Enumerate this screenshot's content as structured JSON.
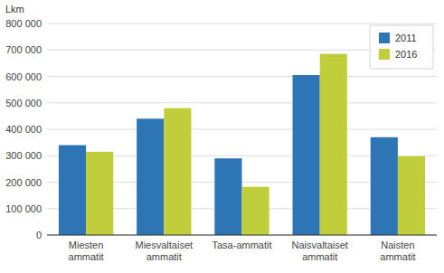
{
  "chart_data": {
    "type": "bar",
    "categories": [
      "Miesten\nammatit",
      "Miesvaltaiset\nammatit",
      "Tasa-ammatit",
      "Naisvaltaiset\nammatit",
      "Naisten\nammatit"
    ],
    "series": [
      {
        "name": "2011",
        "color": "#2E75B6",
        "values": [
          340000,
          440000,
          290000,
          605000,
          370000
        ]
      },
      {
        "name": "2016",
        "color": "#BFCE3A",
        "values": [
          315000,
          480000,
          182000,
          685000,
          298000
        ]
      }
    ],
    "ylabel": "Lkm",
    "ylim": [
      0,
      800000
    ],
    "yticks": [
      0,
      {
        "value": 100000,
        "label": "100 000"
      },
      {
        "value": 200000,
        "label": "200 000"
      },
      {
        "value": 300000,
        "label": "300 000"
      },
      {
        "value": 400000,
        "label": "400 000"
      },
      {
        "value": 500000,
        "label": "500 000"
      },
      {
        "value": 600000,
        "label": "600 000"
      },
      {
        "value": 700000,
        "label": "700 000"
      },
      {
        "value": 800000,
        "label": "800 000"
      }
    ],
    "grid": true,
    "legend": "upper right"
  }
}
